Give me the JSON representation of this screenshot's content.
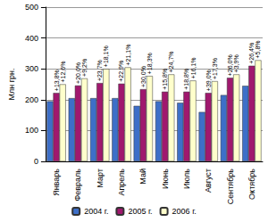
{
  "chart_data": {
    "type": "bar",
    "y_label": "Млн грн.",
    "categories": [
      "Январь",
      "Февраль",
      "Март",
      "Апрель",
      "Май",
      "Июнь",
      "Июль",
      "Август",
      "Сентябрь",
      "Октябрь"
    ],
    "series": [
      {
        "name": "2004 г.",
        "color": "#3d6fc8",
        "values": [
          195,
          205,
          205,
          205,
          180,
          195,
          190,
          160,
          215,
          245
        ]
      },
      {
        "name": "2005 г.",
        "color": "#a0186e",
        "values": [
          222,
          246,
          254,
          252,
          234,
          226,
          226,
          222,
          271,
          310
        ],
        "annotations": [
          "+13,8%",
          "+20,0%",
          "+23,7%",
          "+22,9%",
          "+30,0%",
          "+15,8%",
          "+18,8%",
          "+39,0%",
          "+26,0%",
          "+26,4%"
        ]
      },
      {
        "name": "2006 г.",
        "color": "#ffffcc",
        "values": [
          250,
          269,
          300,
          305,
          277,
          282,
          262,
          260,
          282,
          328
        ],
        "annotations": [
          "+12,6%",
          "+9,2%",
          "+18,1%",
          "+21,1%",
          "+18,3%",
          "+24,7%",
          "+16,1%",
          "+17,3%",
          "+3,9%",
          "+5,8%"
        ]
      }
    ],
    "ylim": [
      0,
      500
    ],
    "yticks": [
      0,
      100,
      200,
      300,
      400,
      500
    ],
    "grid": true,
    "legend": "bottom"
  }
}
